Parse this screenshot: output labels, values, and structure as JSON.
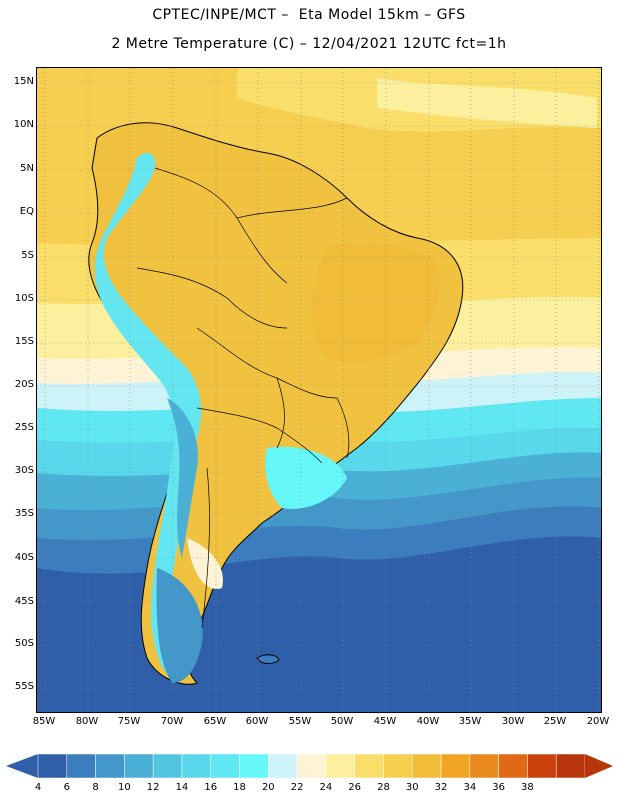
{
  "header": {
    "line1": "CPTEC/INPE/MCT –  Eta Model 15km – GFS",
    "line2": "2 Metre Temperature (C) – 12/04/2021 12UTC fct=1h"
  },
  "map": {
    "lat_labels": [
      "15N",
      "10N",
      "5N",
      "EQ",
      "5S",
      "10S",
      "15S",
      "20S",
      "25S",
      "30S",
      "35S",
      "40S",
      "45S",
      "50S",
      "55S"
    ],
    "lon_labels": [
      "85W",
      "80W",
      "75W",
      "70W",
      "65W",
      "60W",
      "55W",
      "50W",
      "45W",
      "40W",
      "35W",
      "30W",
      "25W",
      "20W"
    ],
    "ocean_north_color": "#f2c64a",
    "land_color": "#f0c23f",
    "andes_color": "#63e6f0"
  },
  "colorbar": {
    "labels": [
      "4",
      "6",
      "8",
      "10",
      "12",
      "14",
      "16",
      "18",
      "20",
      "22",
      "24",
      "26",
      "28",
      "30",
      "32",
      "34",
      "36",
      "38"
    ],
    "colors": [
      "#2f5fa8",
      "#3c7dbd",
      "#4497c9",
      "#4bb0d6",
      "#52c6e0",
      "#58d8ea",
      "#5fe7f2",
      "#66f8f8",
      "#cdf3f8",
      "#fff3d6",
      "#fcef9e",
      "#f9de6a",
      "#f6ce50",
      "#f1bc38",
      "#f0a623",
      "#e88a1d",
      "#df6915",
      "#c9420d",
      "#b8340b"
    ],
    "low_arrow_color": "#2f5fa8",
    "high_arrow_color": "#b8340b"
  }
}
